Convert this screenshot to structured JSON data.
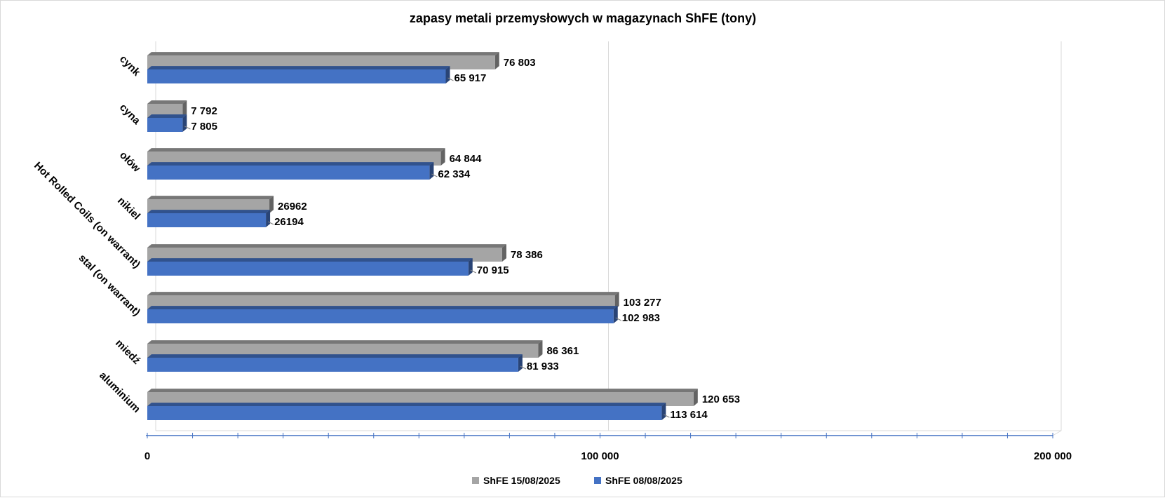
{
  "chart_data": {
    "type": "bar",
    "orientation": "horizontal",
    "title": "zapasy metali przemysłowych w magazynach ShFE (tony)",
    "categories": [
      "cynk",
      "cyna",
      "ołów",
      "nikiel",
      "Hot Rolled Coils (on warrant)",
      "stal (on warrant)",
      "miedź",
      "aluminium"
    ],
    "series": [
      {
        "name": "ShFE 15/08/2025",
        "color": "#a5a5a5",
        "values": [
          76803,
          7792,
          64844,
          26962,
          78386,
          103277,
          86361,
          120653
        ],
        "labels": [
          "76 803",
          "7 792",
          "64 844",
          "26962",
          "78 386",
          "103 277",
          "86 361",
          "120 653"
        ]
      },
      {
        "name": "ShFE 08/08/2025",
        "color": "#4472c4",
        "values": [
          65917,
          7805,
          62334,
          26194,
          70915,
          102983,
          81933,
          113614
        ],
        "labels": [
          "65 917",
          "7 805",
          "62 334",
          "26194",
          "70 915",
          "102 983",
          "81 933",
          "113 614"
        ]
      }
    ],
    "xlim": [
      0,
      200000
    ],
    "xticks": [
      0,
      100000,
      200000
    ],
    "xtick_labels": [
      "0",
      "100 000",
      "200 000"
    ],
    "xlabel": "",
    "ylabel": "",
    "grid": true,
    "legend_position": "bottom"
  }
}
